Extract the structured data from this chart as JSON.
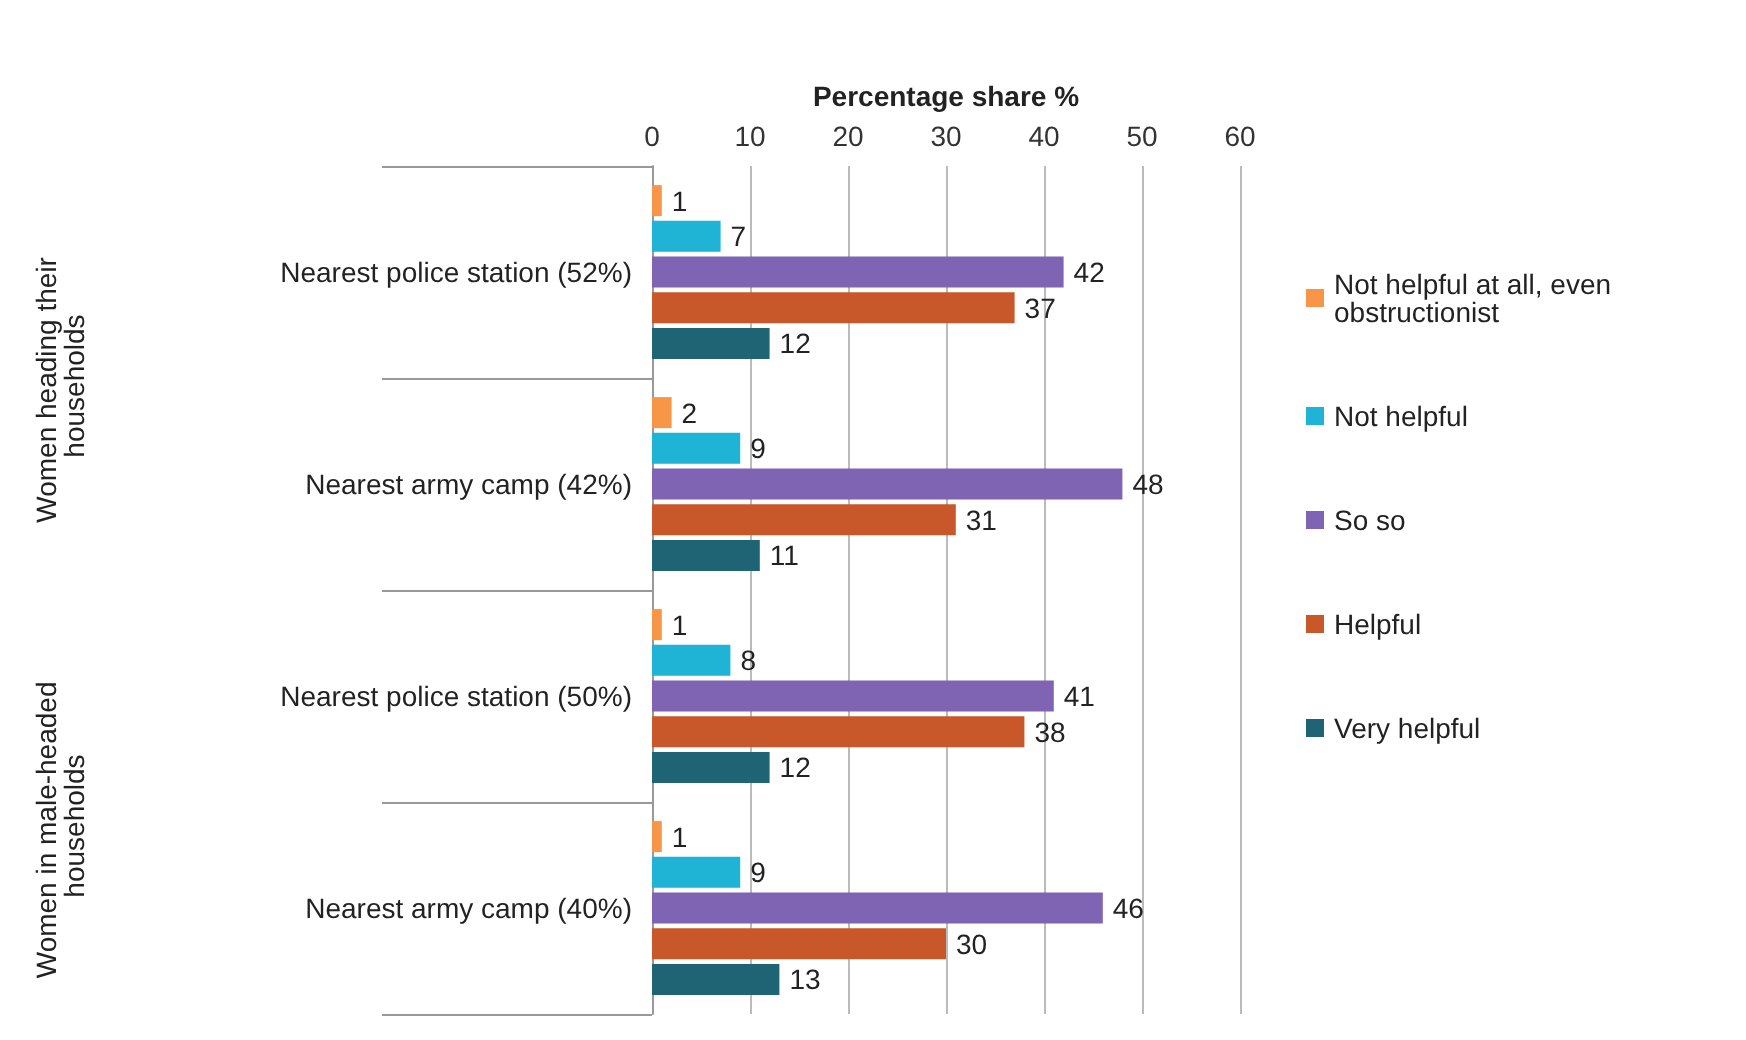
{
  "chart_data": {
    "type": "bar",
    "orientation": "horizontal",
    "xlabel": "Percentage share %",
    "categories": [
      "Nearest police station (52%)",
      "Nearest army camp (42%)",
      "Nearest police station (50%)",
      "Nearest army camp (40%)"
    ],
    "series": [
      {
        "name": "Not helpful at all, even obstructionist",
        "color": "#f79646",
        "values": [
          1,
          2,
          1,
          1
        ]
      },
      {
        "name": "Not helpful",
        "color": "#1fb3d6",
        "values": [
          7,
          9,
          8,
          9
        ]
      },
      {
        "name": "So so",
        "color": "#7f64b4",
        "values": [
          42,
          48,
          41,
          46
        ]
      },
      {
        "name": "Helpful",
        "color": "#c8582a",
        "values": [
          37,
          31,
          38,
          30
        ]
      },
      {
        "name": "Very helpful",
        "color": "#1f6474",
        "values": [
          12,
          11,
          12,
          13
        ]
      }
    ],
    "annotations": [
      "Women heading their households",
      "Women in male-headed households"
    ],
    "xlim": [
      0,
      60
    ],
    "xticks": [
      0,
      10,
      20,
      30,
      40,
      50,
      60
    ],
    "grid": "x",
    "legend": "right",
    "data_labels": true
  }
}
